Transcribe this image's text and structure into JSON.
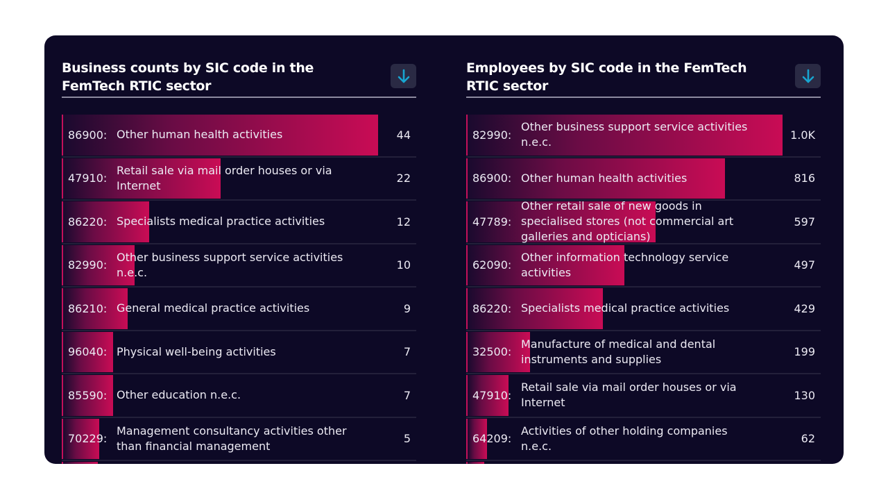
{
  "colors": {
    "background": "#0d0926",
    "bar_start": "#1a0a2e",
    "bar_end": "#c90c55",
    "icon": "#18a5d0"
  },
  "panels": [
    {
      "title": "Business counts by SIC code in the FemTech RTIC sector",
      "download_icon": "arrow-down-icon",
      "rows": [
        {
          "code": "86900:",
          "label": "Other human health activities",
          "value": 44,
          "display": "44"
        },
        {
          "code": "47910:",
          "label": "Retail sale via mail order houses or via Internet",
          "value": 22,
          "display": "22"
        },
        {
          "code": "86220:",
          "label": "Specialists medical practice activities",
          "value": 12,
          "display": "12"
        },
        {
          "code": "82990:",
          "label": "Other business support service activities n.e.c.",
          "value": 10,
          "display": "10"
        },
        {
          "code": "86210:",
          "label": "General medical practice activities",
          "value": 9,
          "display": "9"
        },
        {
          "code": "96040:",
          "label": "Physical well-being activities",
          "value": 7,
          "display": "7"
        },
        {
          "code": "85590:",
          "label": "Other education n.e.c.",
          "value": 7,
          "display": "7"
        },
        {
          "code": "70229:",
          "label": "Management consultancy activities other than financial management",
          "value": 5,
          "display": "5"
        }
      ]
    },
    {
      "title": "Employees by SIC code in the FemTech RTIC sector",
      "download_icon": "arrow-down-icon",
      "rows": [
        {
          "code": "82990:",
          "label": "Other business support service activities n.e.c.",
          "value": 1000,
          "display": "1.0K"
        },
        {
          "code": "86900:",
          "label": "Other human health activities",
          "value": 816,
          "display": "816"
        },
        {
          "code": "47789:",
          "label": "Other retail sale of new goods in specialised stores (not commercial art galleries and opticians)",
          "value": 597,
          "display": "597"
        },
        {
          "code": "62090:",
          "label": "Other information technology service activities",
          "value": 497,
          "display": "497"
        },
        {
          "code": "86220:",
          "label": "Specialists medical practice activities",
          "value": 429,
          "display": "429"
        },
        {
          "code": "32500:",
          "label": "Manufacture of medical and dental instruments and supplies",
          "value": 199,
          "display": "199"
        },
        {
          "code": "47910:",
          "label": "Retail sale via mail order houses or via Internet",
          "value": 130,
          "display": "130"
        },
        {
          "code": "64209:",
          "label": "Activities of other holding companies n.e.c.",
          "value": 62,
          "display": "62"
        }
      ]
    }
  ]
}
